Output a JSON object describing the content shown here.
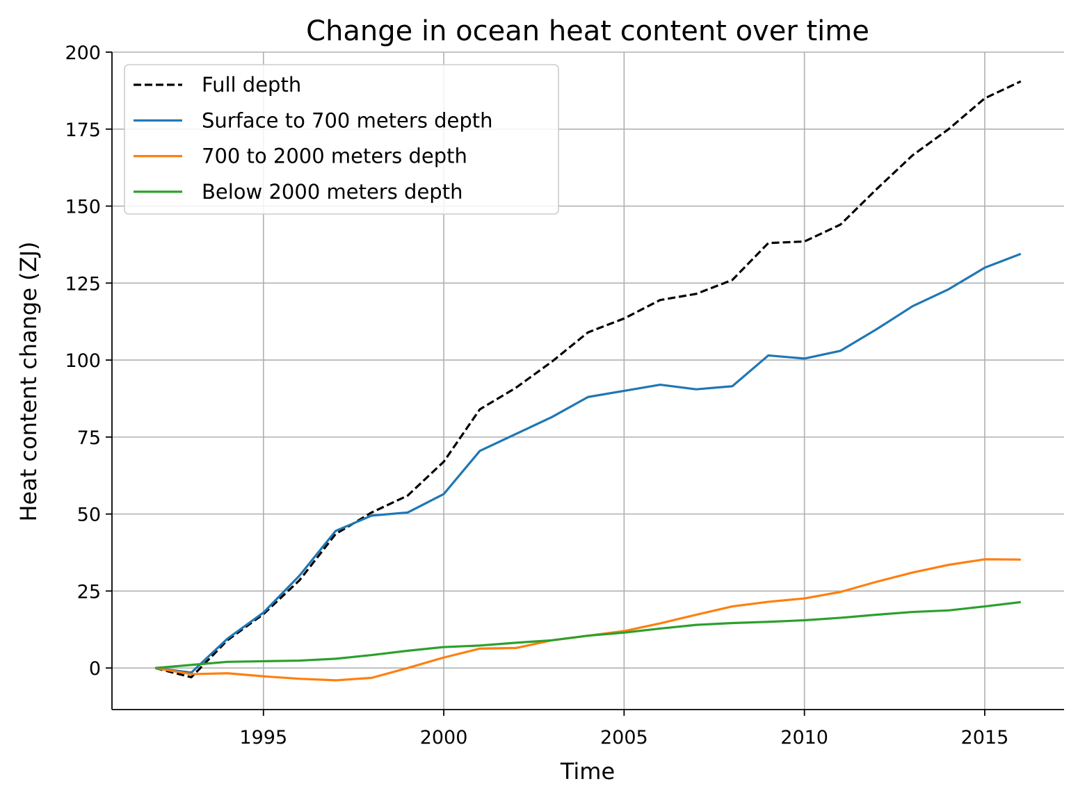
{
  "chart_data": {
    "type": "line",
    "title": "Change in ocean heat content over time",
    "xlabel": "Time",
    "ylabel": "Heat content change (ZJ)",
    "xlim": [
      1990.8,
      2017.2
    ],
    "ylim": [
      -13.5,
      200
    ],
    "xticks": [
      1995,
      2000,
      2005,
      2010,
      2015
    ],
    "yticks": [
      0,
      25,
      50,
      75,
      100,
      125,
      150,
      175,
      200
    ],
    "grid": true,
    "legend_position": "top-left",
    "x": [
      1992,
      1993,
      1994,
      1995,
      1996,
      1997,
      1998,
      1999,
      2000,
      2001,
      2002,
      2003,
      2004,
      2005,
      2006,
      2007,
      2008,
      2009,
      2010,
      2011,
      2012,
      2013,
      2014,
      2015,
      2016
    ],
    "series": [
      {
        "name": "Full depth",
        "color": "#000000",
        "dash": "dashed",
        "values": [
          0,
          -3,
          9,
          17.5,
          28.5,
          43.5,
          50.5,
          56,
          67,
          84,
          91,
          99.5,
          109,
          113.5,
          119.5,
          121.5,
          126,
          138,
          138.5,
          144,
          155.5,
          166.5,
          175,
          185,
          190.5
        ]
      },
      {
        "name": "Surface to 700 meters depth",
        "color": "#1f77b4",
        "dash": "solid",
        "values": [
          0,
          -1.5,
          9.5,
          18,
          30,
          44.5,
          49.5,
          50.5,
          56.5,
          70.5,
          76,
          81.5,
          88,
          90,
          92,
          90.5,
          91.5,
          101.5,
          100.5,
          103,
          110,
          117.5,
          123,
          130,
          134.5
        ]
      },
      {
        "name": "700 to 2000 meters depth",
        "color": "#ff7f0e",
        "dash": "solid",
        "values": [
          0,
          -2,
          -1.7,
          -2.7,
          -3.5,
          -4,
          -3.2,
          0,
          3.4,
          6.3,
          6.5,
          9,
          10.5,
          12,
          14.5,
          17.3,
          20,
          21.5,
          22.6,
          24.7,
          28,
          31,
          33.5,
          35.3,
          35.2
        ]
      },
      {
        "name": "Below 2000 meters depth",
        "color": "#2ca02c",
        "dash": "solid",
        "values": [
          0,
          1,
          2,
          2.2,
          2.4,
          3,
          4.2,
          5.6,
          6.8,
          7.3,
          8.2,
          9,
          10.5,
          11.5,
          12.8,
          14,
          14.6,
          15,
          15.5,
          16.3,
          17.3,
          18.2,
          18.7,
          20,
          21.4
        ]
      }
    ]
  }
}
